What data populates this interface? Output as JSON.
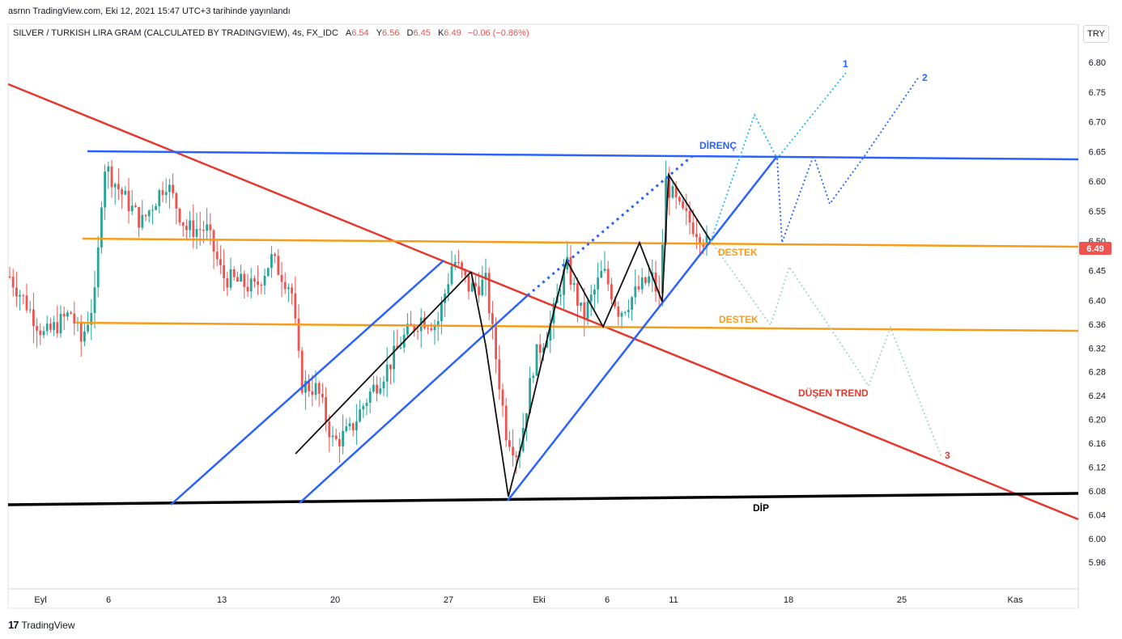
{
  "header": {
    "published": "asrnn TradingView.com, Eki 12, 2021 15:47 UTC+3 tarihinde yayınlandı",
    "symbol": "SILVER / TURKISH LIRA GRAM (CALCULATED BY TRADINGVIEW), 4s, FX_IDC",
    "open_label": "A",
    "open": "6.54",
    "high_label": "Y",
    "high": "6.56",
    "low_label": "D",
    "low": "6.45",
    "close_label": "K",
    "close": "6.49",
    "change": "−0.06 (−0.86%)",
    "currency": "TRY"
  },
  "footer": {
    "brand_mark": "17",
    "brand": "TradingView"
  },
  "colors": {
    "up": "#26a69a",
    "down": "#ef5350",
    "resistance": "#2962ff",
    "support": "#f59c1a",
    "trend": "#e5392f",
    "bottom": "#000000"
  },
  "chart_data": {
    "type": "candlestick",
    "title": "SILVER / TURKISH LIRA GRAM",
    "interval": "4s",
    "ylim": [
      5.94,
      6.84
    ],
    "y_ticks": [
      "6.80",
      "6.75",
      "6.70",
      "6.65",
      "6.60",
      "6.55",
      "6.50",
      "6.45",
      "6.40",
      "6.36",
      "6.32",
      "6.28",
      "6.24",
      "6.20",
      "6.16",
      "6.12",
      "6.08",
      "6.04",
      "6.00",
      "5.96"
    ],
    "x_ticks": [
      "Eyl",
      "6",
      "13",
      "20",
      "27",
      "Eki",
      "6",
      "11",
      "18",
      "25",
      "Kas"
    ],
    "last_price": "6.49",
    "grid": false,
    "annotations": [
      {
        "text": "DİRENÇ",
        "kind": "resistance",
        "value": 6.65
      },
      {
        "text": "DESTEK",
        "kind": "support",
        "value": 6.5
      },
      {
        "text": "DESTEK",
        "kind": "support",
        "value": 6.36
      },
      {
        "text": "DÜŞEN TREND",
        "kind": "downtrend"
      },
      {
        "text": "DİP",
        "kind": "bottom",
        "value": 6.09
      },
      {
        "text": "1",
        "kind": "scenario"
      },
      {
        "text": "2",
        "kind": "scenario"
      },
      {
        "text": "3",
        "kind": "scenario"
      }
    ]
  }
}
